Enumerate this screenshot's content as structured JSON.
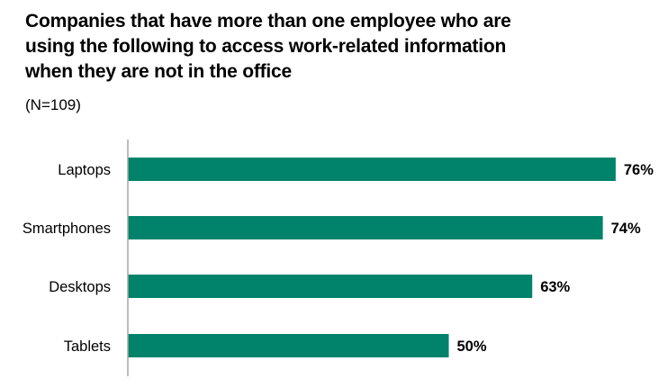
{
  "chart_data": {
    "type": "bar",
    "orientation": "horizontal",
    "title": "Companies that have more than one employee who are\nusing the following to access work-related information\nwhen they are not in the office",
    "subtitle": "(N=109)",
    "categories": [
      "Laptops",
      "Smartphones",
      "Desktops",
      "Tablets"
    ],
    "values": [
      76,
      74,
      63,
      50
    ],
    "value_labels": [
      "76%",
      "74%",
      "63%",
      "50%"
    ],
    "xlim": [
      0,
      100
    ],
    "grid": false,
    "legend": "none",
    "colors": {
      "bar": "#00836A",
      "axis": "#A6A6A6"
    }
  }
}
